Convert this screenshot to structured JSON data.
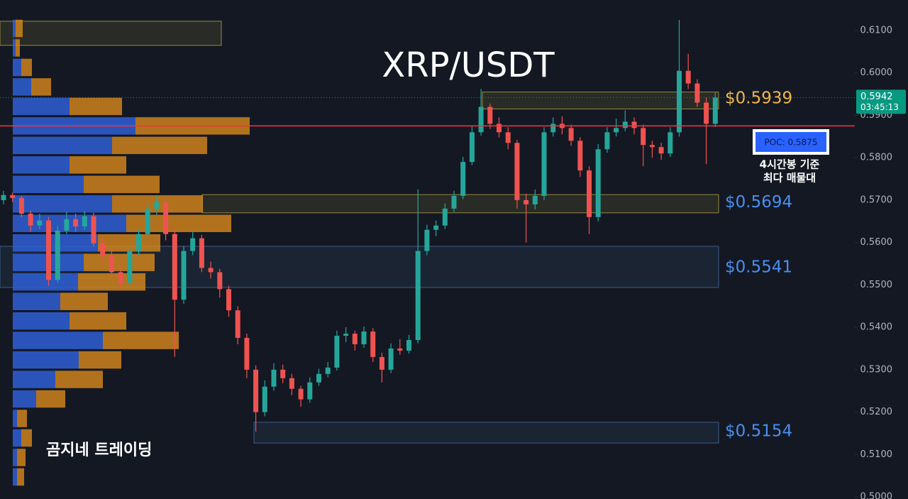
{
  "chart_data": {
    "type": "candlestick",
    "title": "XRP/USDT",
    "watermark": "곰지네 트레이딩",
    "ylim": [
      0.4995,
      0.6172
    ],
    "yticks": [
      {
        "value": 0.61,
        "label": "0.6100"
      },
      {
        "value": 0.6,
        "label": "0.6000"
      },
      {
        "value": 0.59,
        "label": "0.5900"
      },
      {
        "value": 0.58,
        "label": "0.5800"
      },
      {
        "value": 0.57,
        "label": "0.5700"
      },
      {
        "value": 0.56,
        "label": "0.5600"
      },
      {
        "value": 0.55,
        "label": "0.5500"
      },
      {
        "value": 0.54,
        "label": "0.5400"
      },
      {
        "value": 0.53,
        "label": "0.5300"
      },
      {
        "value": 0.52,
        "label": "0.5200"
      },
      {
        "value": 0.51,
        "label": "0.5100"
      },
      {
        "value": 0.5,
        "label": "0.5000"
      }
    ],
    "up_color": "#26a69a",
    "down_color": "#ef5350",
    "candles": [
      [
        0.57,
        0.5722,
        0.569,
        0.5712
      ],
      [
        0.5712,
        0.5718,
        0.5695,
        0.5705
      ],
      [
        0.5705,
        0.571,
        0.566,
        0.5668
      ],
      [
        0.5668,
        0.5675,
        0.5625,
        0.564
      ],
      [
        0.564,
        0.5668,
        0.5632,
        0.5652
      ],
      [
        0.5652,
        0.566,
        0.5498,
        0.5512
      ],
      [
        0.5512,
        0.564,
        0.5505,
        0.5628
      ],
      [
        0.5628,
        0.5672,
        0.562,
        0.5655
      ],
      [
        0.5655,
        0.5668,
        0.5625,
        0.5638
      ],
      [
        0.5638,
        0.5675,
        0.563,
        0.5662
      ],
      [
        0.5662,
        0.567,
        0.559,
        0.5598
      ],
      [
        0.5598,
        0.561,
        0.5555,
        0.557
      ],
      [
        0.557,
        0.5585,
        0.5515,
        0.553
      ],
      [
        0.553,
        0.5545,
        0.549,
        0.5505
      ],
      [
        0.5505,
        0.559,
        0.5498,
        0.558
      ],
      [
        0.558,
        0.5632,
        0.557,
        0.562
      ],
      [
        0.562,
        0.5692,
        0.5612,
        0.568
      ],
      [
        0.568,
        0.5712,
        0.5665,
        0.5695
      ],
      [
        0.5695,
        0.57,
        0.5605,
        0.562
      ],
      [
        0.562,
        0.563,
        0.533,
        0.5465
      ],
      [
        0.5465,
        0.5592,
        0.5455,
        0.558
      ],
      [
        0.558,
        0.5625,
        0.557,
        0.561
      ],
      [
        0.561,
        0.5618,
        0.553,
        0.554
      ],
      [
        0.554,
        0.5555,
        0.5515,
        0.553
      ],
      [
        0.553,
        0.5538,
        0.547,
        0.549
      ],
      [
        0.549,
        0.5498,
        0.5425,
        0.544
      ],
      [
        0.544,
        0.545,
        0.536,
        0.5375
      ],
      [
        0.5375,
        0.5385,
        0.528,
        0.53
      ],
      [
        0.53,
        0.531,
        0.5154,
        0.52
      ],
      [
        0.52,
        0.5275,
        0.519,
        0.526
      ],
      [
        0.526,
        0.5315,
        0.525,
        0.53
      ],
      [
        0.53,
        0.5312,
        0.5268,
        0.528
      ],
      [
        0.528,
        0.529,
        0.524,
        0.5255
      ],
      [
        0.5255,
        0.5262,
        0.5212,
        0.523
      ],
      [
        0.523,
        0.5282,
        0.5222,
        0.527
      ],
      [
        0.527,
        0.5302,
        0.5262,
        0.529
      ],
      [
        0.529,
        0.5318,
        0.5282,
        0.5305
      ],
      [
        0.5305,
        0.5392,
        0.5298,
        0.538
      ],
      [
        0.538,
        0.54,
        0.5365,
        0.5385
      ],
      [
        0.5385,
        0.5392,
        0.5345,
        0.536
      ],
      [
        0.536,
        0.5402,
        0.5352,
        0.539
      ],
      [
        0.539,
        0.5398,
        0.5318,
        0.533
      ],
      [
        0.533,
        0.534,
        0.527,
        0.53
      ],
      [
        0.53,
        0.5362,
        0.5292,
        0.535
      ],
      [
        0.535,
        0.5372,
        0.5335,
        0.5345
      ],
      [
        0.5345,
        0.5382,
        0.5338,
        0.537
      ],
      [
        0.537,
        0.5725,
        0.5362,
        0.558
      ],
      [
        0.558,
        0.5642,
        0.557,
        0.563
      ],
      [
        0.563,
        0.5652,
        0.5615,
        0.564
      ],
      [
        0.564,
        0.5692,
        0.5632,
        0.568
      ],
      [
        0.568,
        0.5722,
        0.5672,
        0.571
      ],
      [
        0.571,
        0.5802,
        0.5702,
        0.579
      ],
      [
        0.579,
        0.5875,
        0.5782,
        0.586
      ],
      [
        0.586,
        0.5962,
        0.5852,
        0.592
      ],
      [
        0.592,
        0.5928,
        0.5868,
        0.588
      ],
      [
        0.588,
        0.5895,
        0.5848,
        0.586
      ],
      [
        0.586,
        0.5872,
        0.582,
        0.5835
      ],
      [
        0.5835,
        0.5842,
        0.568,
        0.57
      ],
      [
        0.57,
        0.5715,
        0.56,
        0.569
      ],
      [
        0.569,
        0.5725,
        0.5678,
        0.571
      ],
      [
        0.571,
        0.5872,
        0.57,
        0.586
      ],
      [
        0.586,
        0.5895,
        0.585,
        0.588
      ],
      [
        0.588,
        0.5898,
        0.5855,
        0.587
      ],
      [
        0.587,
        0.5878,
        0.5828,
        0.584
      ],
      [
        0.584,
        0.5848,
        0.5755,
        0.577
      ],
      [
        0.577,
        0.578,
        0.562,
        0.566
      ],
      [
        0.566,
        0.5832,
        0.565,
        0.582
      ],
      [
        0.582,
        0.5872,
        0.5812,
        0.586
      ],
      [
        0.586,
        0.5892,
        0.585,
        0.587
      ],
      [
        0.587,
        0.5912,
        0.5862,
        0.5885
      ],
      [
        0.5885,
        0.5895,
        0.5855,
        0.587
      ],
      [
        0.587,
        0.5878,
        0.578,
        0.583
      ],
      [
        0.583,
        0.584,
        0.58,
        0.5825
      ],
      [
        0.5825,
        0.5835,
        0.5795,
        0.581
      ],
      [
        0.581,
        0.5872,
        0.5802,
        0.586
      ],
      [
        0.586,
        0.6125,
        0.585,
        0.6005
      ],
      [
        0.6005,
        0.6045,
        0.5962,
        0.5975
      ],
      [
        0.5975,
        0.5985,
        0.592,
        0.593
      ],
      [
        0.593,
        0.5942,
        0.5785,
        0.588
      ],
      [
        0.588,
        0.5955,
        0.5872,
        0.5942
      ]
    ],
    "profile_colors": [
      "#2f5fd6",
      "#d98a1c"
    ],
    "profile": [
      {
        "price": 0.6105,
        "buy": 4,
        "sell": 10
      },
      {
        "price": 0.6059,
        "buy": 4,
        "sell": 6
      },
      {
        "price": 0.6013,
        "buy": 12,
        "sell": 15
      },
      {
        "price": 0.5967,
        "buy": 26,
        "sell": 28
      },
      {
        "price": 0.5921,
        "buy": 80,
        "sell": 74
      },
      {
        "price": 0.5875,
        "buy": 173,
        "sell": 161
      },
      {
        "price": 0.5829,
        "buy": 140,
        "sell": 134
      },
      {
        "price": 0.5783,
        "buy": 80,
        "sell": 80
      },
      {
        "price": 0.5737,
        "buy": 100,
        "sell": 107
      },
      {
        "price": 0.5691,
        "buy": 140,
        "sell": 128
      },
      {
        "price": 0.5645,
        "buy": 160,
        "sell": 148
      },
      {
        "price": 0.5599,
        "buy": 120,
        "sell": 88
      },
      {
        "price": 0.5553,
        "buy": 100,
        "sell": 100
      },
      {
        "price": 0.5507,
        "buy": 92,
        "sell": 95
      },
      {
        "price": 0.5461,
        "buy": 67,
        "sell": 67
      },
      {
        "price": 0.5415,
        "buy": 80,
        "sell": 80
      },
      {
        "price": 0.5369,
        "buy": 127,
        "sell": 107
      },
      {
        "price": 0.5323,
        "buy": 93,
        "sell": 60
      },
      {
        "price": 0.5277,
        "buy": 60,
        "sell": 67
      },
      {
        "price": 0.5231,
        "buy": 33,
        "sell": 41
      },
      {
        "price": 0.5185,
        "buy": 6,
        "sell": 14
      },
      {
        "price": 0.5139,
        "buy": 12,
        "sell": 15
      },
      {
        "price": 0.5093,
        "buy": 6,
        "sell": 12
      },
      {
        "price": 0.5047,
        "buy": 6,
        "sell": 10
      }
    ],
    "zones": [
      {
        "low": 0.6065,
        "high": 0.6122,
        "color": "#c8b34a"
      },
      {
        "low": 0.5915,
        "high": 0.5955,
        "color": "#c8b34a"
      },
      {
        "low": 0.567,
        "high": 0.5713,
        "color": "#c8b34a"
      },
      {
        "low": 0.5494,
        "high": 0.5591,
        "color": "#4a78b0"
      },
      {
        "low": 0.5127,
        "high": 0.5176,
        "color": "#4a78b0"
      }
    ],
    "levels": [
      {
        "value": 0.5939,
        "label": "$0.5939",
        "color": "#f2b84b"
      },
      {
        "value": 0.5694,
        "label": "$0.5694",
        "color": "#4a8ff0"
      },
      {
        "value": 0.5541,
        "label": "$0.5541",
        "color": "#4a8ff0"
      },
      {
        "value": 0.5154,
        "label": "$0.5154",
        "color": "#4a8ff0"
      }
    ],
    "poc": {
      "value": 0.5875,
      "label": "POC: 0.5875",
      "note": [
        "4시간봉 기준",
        "최다 매물대"
      ],
      "color": "#f23645"
    },
    "current": {
      "value": 0.5942,
      "timer": "03:45:13",
      "color": "#089981"
    }
  }
}
